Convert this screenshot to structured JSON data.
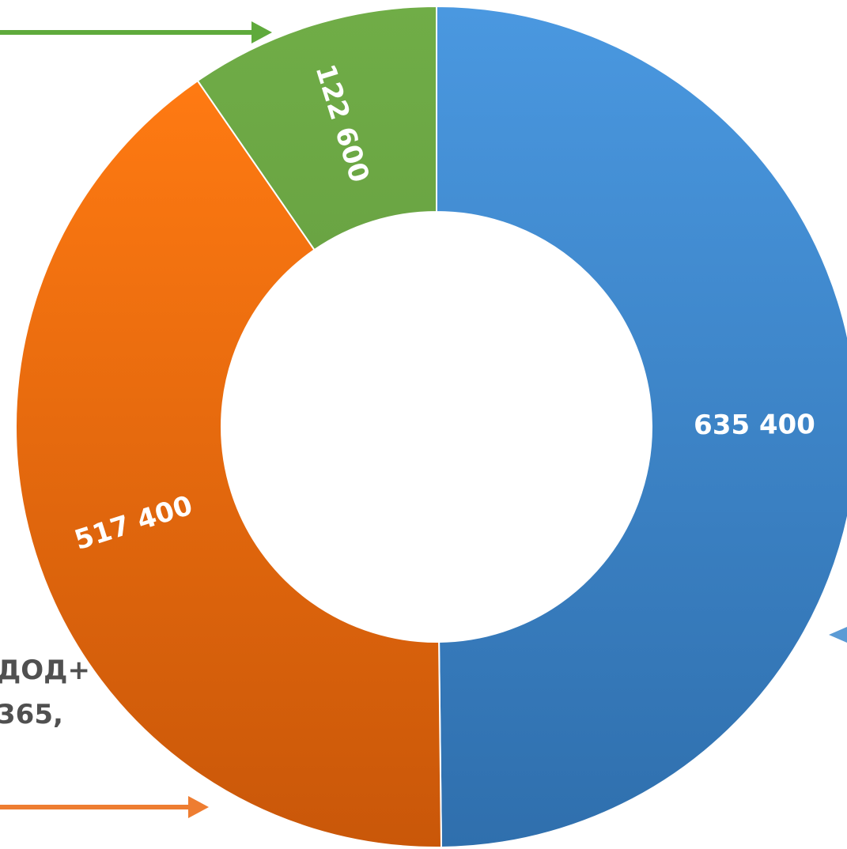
{
  "chart_data": {
    "type": "pie",
    "variant": "donut",
    "start_angle_deg": 0,
    "direction": "clockwise",
    "slices": [
      {
        "label": "635 400",
        "value": 635400,
        "color_top": "#4a98e0",
        "color_bottom": "#2f6fad"
      },
      {
        "label": "517 400",
        "value": 517400,
        "color_top": "#ff7a12",
        "color_bottom": "#c95709"
      },
      {
        "label": "122 600",
        "value": 122600,
        "color_top": "#70ad47",
        "color_bottom": "#6aa443"
      }
    ],
    "legend": "none"
  },
  "side_text": {
    "line1": "ДОД+",
    "line2": "365,"
  },
  "colors": {
    "arrow_green": "#5faa3c",
    "arrow_orange": "#ee7d31",
    "arrow_blue": "#5b9bd5",
    "side_text": "#505050"
  }
}
